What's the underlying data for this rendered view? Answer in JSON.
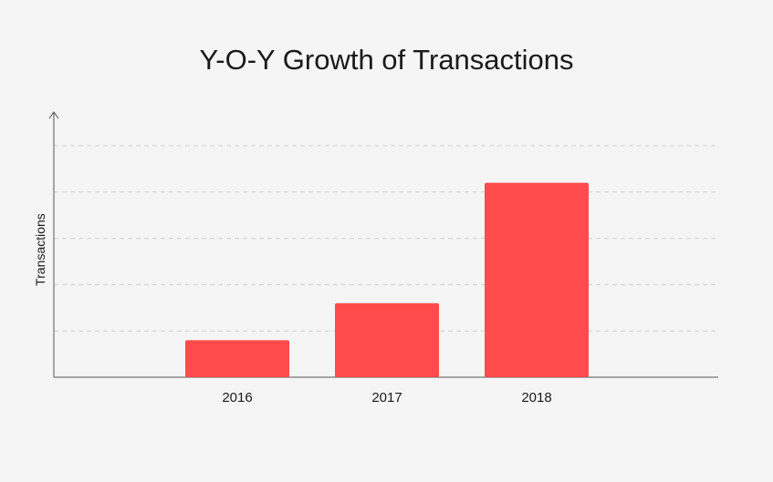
{
  "chart_data": {
    "type": "bar",
    "title": "Y-O-Y Growth of Transactions",
    "xlabel": "",
    "ylabel": "Transactions",
    "categories": [
      "2016",
      "2017",
      "2018"
    ],
    "values": [
      0.8,
      1.6,
      4.2
    ],
    "ylim": [
      0,
      5
    ],
    "grid": true,
    "bar_color": "#ff4b4b"
  }
}
